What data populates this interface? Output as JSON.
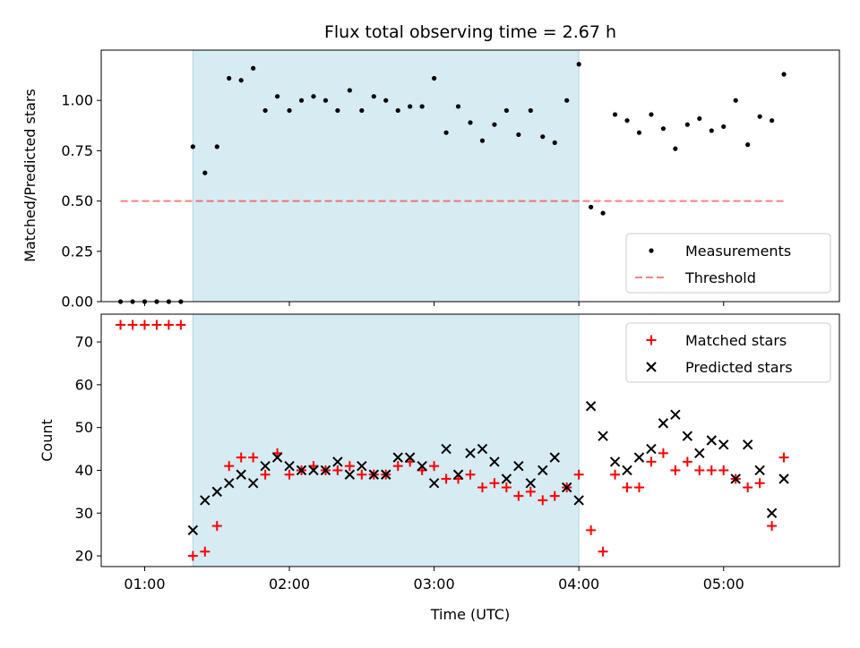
{
  "chart_data": {
    "type": "scatter",
    "title": "Flux total observing time = 2.67 h",
    "xlabel": "Time (UTC)",
    "x_unit": "hours UTC",
    "xlim": [
      "00:42",
      "05:48"
    ],
    "x_tick_labels": [
      "01:00",
      "02:00",
      "03:00",
      "04:00",
      "05:00"
    ],
    "observing_window": {
      "start": "01:20",
      "end": "04:00",
      "color": "#add8e6"
    },
    "colors": {
      "measurements": "#000000",
      "threshold": "#ff0000",
      "matched": "#ff0000",
      "predicted": "#000000",
      "shade": "#add8e6"
    },
    "panels": [
      {
        "name": "ratio",
        "ylabel": "Matched/Predicted stars",
        "ylim": [
          0.0,
          1.25
        ],
        "y_ticks": [
          "0.00",
          "0.25",
          "0.50",
          "0.75",
          "1.00"
        ],
        "legend": {
          "placement": "lower right",
          "entries": [
            "Measurements",
            "Threshold"
          ]
        },
        "series": [
          {
            "name": "Measurements",
            "marker": "dot",
            "points": [
              [
                "00:50",
                0.0
              ],
              [
                "00:55",
                0.0
              ],
              [
                "01:00",
                0.0
              ],
              [
                "01:05",
                0.0
              ],
              [
                "01:10",
                0.0
              ],
              [
                "01:15",
                0.0
              ],
              [
                "01:20",
                0.77
              ],
              [
                "01:25",
                0.64
              ],
              [
                "01:30",
                0.77
              ],
              [
                "01:35",
                1.11
              ],
              [
                "01:40",
                1.1
              ],
              [
                "01:45",
                1.16
              ],
              [
                "01:50",
                0.95
              ],
              [
                "01:55",
                1.02
              ],
              [
                "02:00",
                0.95
              ],
              [
                "02:05",
                1.0
              ],
              [
                "02:10",
                1.02
              ],
              [
                "02:15",
                1.0
              ],
              [
                "02:20",
                0.95
              ],
              [
                "02:25",
                1.05
              ],
              [
                "02:30",
                0.95
              ],
              [
                "02:35",
                1.02
              ],
              [
                "02:40",
                1.0
              ],
              [
                "02:45",
                0.95
              ],
              [
                "02:50",
                0.97
              ],
              [
                "02:55",
                0.97
              ],
              [
                "03:00",
                1.11
              ],
              [
                "03:05",
                0.84
              ],
              [
                "03:10",
                0.97
              ],
              [
                "03:15",
                0.89
              ],
              [
                "03:20",
                0.8
              ],
              [
                "03:25",
                0.88
              ],
              [
                "03:30",
                0.95
              ],
              [
                "03:35",
                0.83
              ],
              [
                "03:40",
                0.95
              ],
              [
                "03:45",
                0.82
              ],
              [
                "03:50",
                0.79
              ],
              [
                "03:55",
                1.0
              ],
              [
                "04:00",
                1.18
              ],
              [
                "04:05",
                0.47
              ],
              [
                "04:10",
                0.44
              ],
              [
                "04:15",
                0.93
              ],
              [
                "04:20",
                0.9
              ],
              [
                "04:25",
                0.84
              ],
              [
                "04:30",
                0.93
              ],
              [
                "04:35",
                0.86
              ],
              [
                "04:40",
                0.76
              ],
              [
                "04:45",
                0.88
              ],
              [
                "04:50",
                0.91
              ],
              [
                "04:55",
                0.85
              ],
              [
                "05:00",
                0.87
              ],
              [
                "05:05",
                1.0
              ],
              [
                "05:10",
                0.78
              ],
              [
                "05:15",
                0.92
              ],
              [
                "05:20",
                0.9
              ],
              [
                "05:25",
                1.13
              ]
            ]
          },
          {
            "name": "Threshold",
            "style": "dashed",
            "x": [
              "00:50",
              "05:25"
            ],
            "y": [
              0.5,
              0.5
            ]
          }
        ]
      },
      {
        "name": "count",
        "ylabel": "Count",
        "ylim": [
          17.5,
          76.5
        ],
        "y_ticks": [
          "20",
          "30",
          "40",
          "50",
          "60",
          "70"
        ],
        "legend": {
          "placement": "upper right",
          "entries": [
            "Matched stars",
            "Predicted stars"
          ]
        },
        "series": [
          {
            "name": "Matched stars",
            "marker": "plus",
            "points": [
              [
                "00:50",
                74
              ],
              [
                "00:55",
                74
              ],
              [
                "01:00",
                74
              ],
              [
                "01:05",
                74
              ],
              [
                "01:10",
                74
              ],
              [
                "01:15",
                74
              ],
              [
                "01:20",
                20
              ],
              [
                "01:25",
                21
              ],
              [
                "01:30",
                27
              ],
              [
                "01:35",
                41
              ],
              [
                "01:40",
                43
              ],
              [
                "01:45",
                43
              ],
              [
                "01:50",
                39
              ],
              [
                "01:55",
                44
              ],
              [
                "02:00",
                39
              ],
              [
                "02:05",
                40
              ],
              [
                "02:10",
                41
              ],
              [
                "02:15",
                40
              ],
              [
                "02:20",
                40
              ],
              [
                "02:25",
                41
              ],
              [
                "02:30",
                39
              ],
              [
                "02:35",
                39
              ],
              [
                "02:40",
                39
              ],
              [
                "02:45",
                41
              ],
              [
                "02:50",
                42
              ],
              [
                "02:55",
                40
              ],
              [
                "03:00",
                41
              ],
              [
                "03:05",
                38
              ],
              [
                "03:10",
                38
              ],
              [
                "03:15",
                39
              ],
              [
                "03:20",
                36
              ],
              [
                "03:25",
                37
              ],
              [
                "03:30",
                36
              ],
              [
                "03:35",
                34
              ],
              [
                "03:40",
                35
              ],
              [
                "03:45",
                33
              ],
              [
                "03:50",
                34
              ],
              [
                "03:55",
                36
              ],
              [
                "04:00",
                39
              ],
              [
                "04:05",
                26
              ],
              [
                "04:10",
                21
              ],
              [
                "04:15",
                39
              ],
              [
                "04:20",
                36
              ],
              [
                "04:25",
                36
              ],
              [
                "04:30",
                42
              ],
              [
                "04:35",
                44
              ],
              [
                "04:40",
                40
              ],
              [
                "04:45",
                42
              ],
              [
                "04:50",
                40
              ],
              [
                "04:55",
                40
              ],
              [
                "05:00",
                40
              ],
              [
                "05:05",
                38
              ],
              [
                "05:10",
                36
              ],
              [
                "05:15",
                37
              ],
              [
                "05:20",
                27
              ],
              [
                "05:25",
                43
              ]
            ]
          },
          {
            "name": "Predicted stars",
            "marker": "x",
            "points": [
              [
                "01:20",
                26
              ],
              [
                "01:25",
                33
              ],
              [
                "01:30",
                35
              ],
              [
                "01:35",
                37
              ],
              [
                "01:40",
                39
              ],
              [
                "01:45",
                37
              ],
              [
                "01:50",
                41
              ],
              [
                "01:55",
                43
              ],
              [
                "02:00",
                41
              ],
              [
                "02:05",
                40
              ],
              [
                "02:10",
                40
              ],
              [
                "02:15",
                40
              ],
              [
                "02:20",
                42
              ],
              [
                "02:25",
                39
              ],
              [
                "02:30",
                41
              ],
              [
                "02:35",
                39
              ],
              [
                "02:40",
                39
              ],
              [
                "02:45",
                43
              ],
              [
                "02:50",
                43
              ],
              [
                "02:55",
                41
              ],
              [
                "03:00",
                37
              ],
              [
                "03:05",
                45
              ],
              [
                "03:10",
                39
              ],
              [
                "03:15",
                44
              ],
              [
                "03:20",
                45
              ],
              [
                "03:25",
                42
              ],
              [
                "03:30",
                38
              ],
              [
                "03:35",
                41
              ],
              [
                "03:40",
                37
              ],
              [
                "03:45",
                40
              ],
              [
                "03:50",
                43
              ],
              [
                "03:55",
                36
              ],
              [
                "04:00",
                33
              ],
              [
                "04:05",
                55
              ],
              [
                "04:10",
                48
              ],
              [
                "04:15",
                42
              ],
              [
                "04:20",
                40
              ],
              [
                "04:25",
                43
              ],
              [
                "04:30",
                45
              ],
              [
                "04:35",
                51
              ],
              [
                "04:40",
                53
              ],
              [
                "04:45",
                48
              ],
              [
                "04:50",
                44
              ],
              [
                "04:55",
                47
              ],
              [
                "05:00",
                46
              ],
              [
                "05:05",
                38
              ],
              [
                "05:10",
                46
              ],
              [
                "05:15",
                40
              ],
              [
                "05:20",
                30
              ],
              [
                "05:25",
                38
              ]
            ]
          }
        ]
      }
    ]
  }
}
